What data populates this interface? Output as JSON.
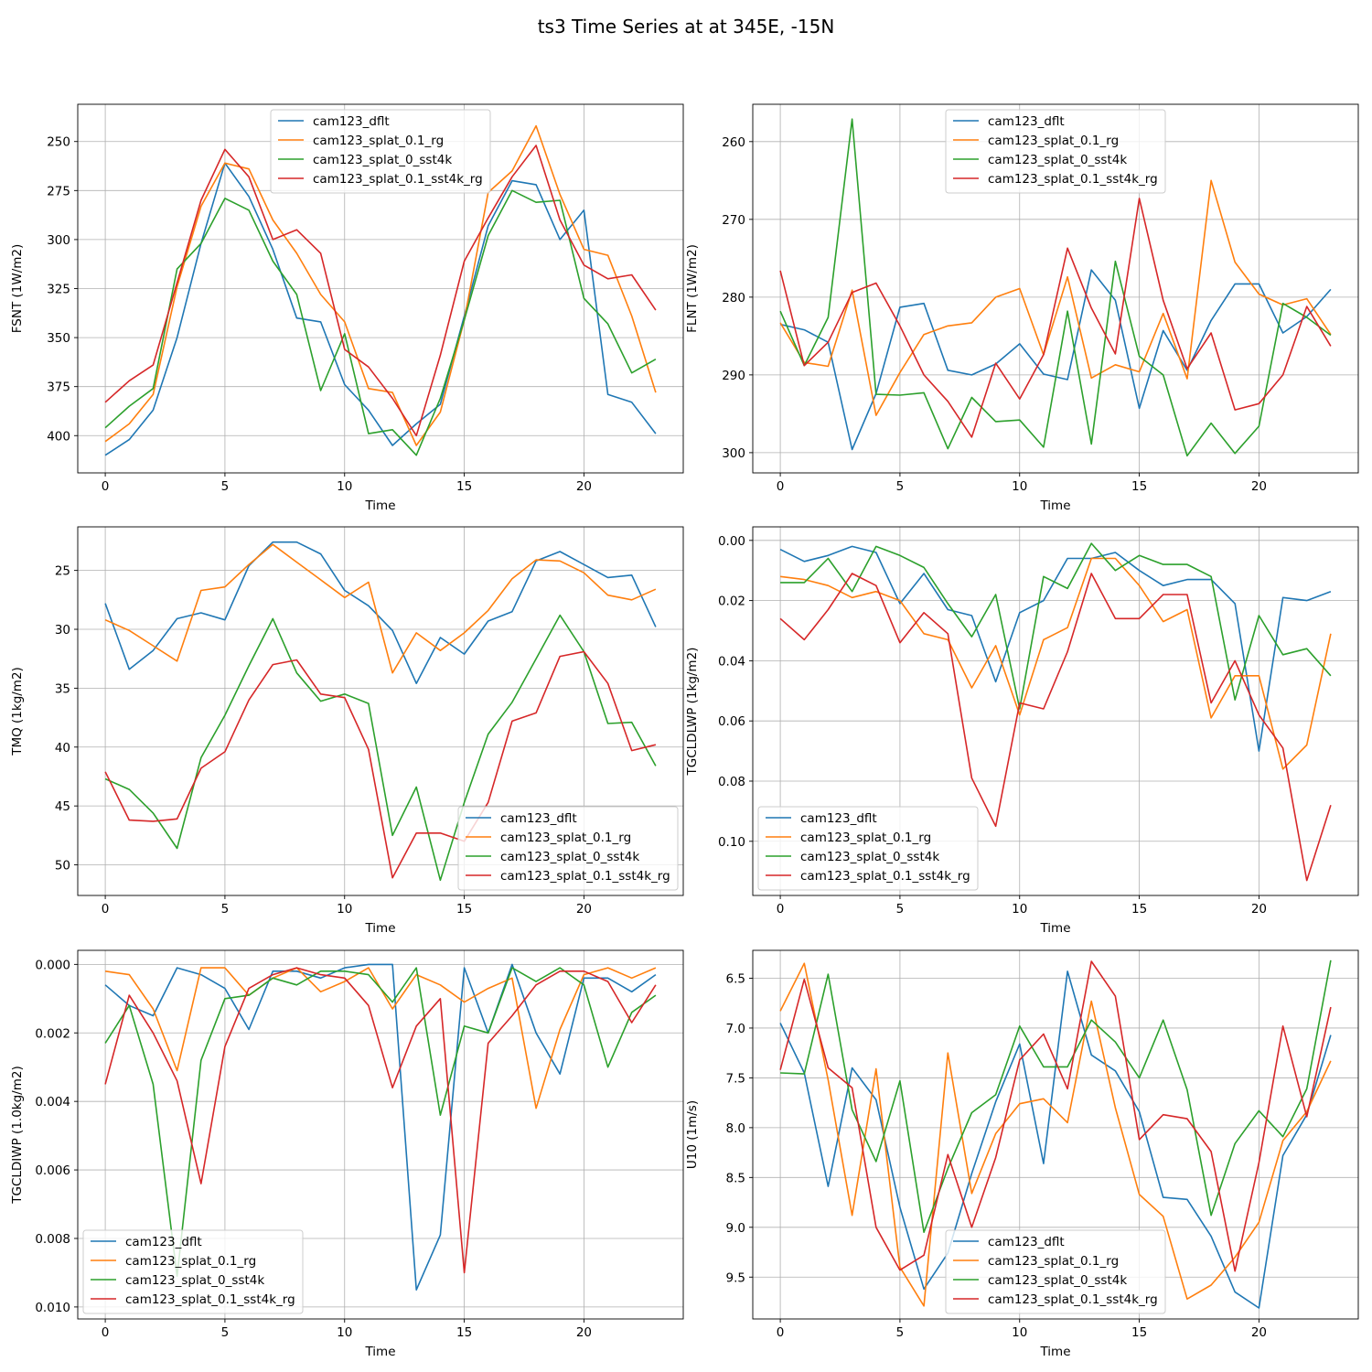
{
  "figure": {
    "title": "ts3 Time Series at at 345E, -15N",
    "series_names": [
      "cam123_dflt",
      "cam123_splat_0.1_rg",
      "cam123_splat_0_sst4k",
      "cam123_splat_0.1_sst4k_rg"
    ],
    "series_colors": [
      "#1f77b4",
      "#ff7f0e",
      "#2ca02c",
      "#d62728"
    ]
  },
  "chart_data": [
    {
      "type": "line",
      "xlabel": "Time",
      "ylabel": "FSNT (1W/m2)",
      "y_inverted": true,
      "xlim": [
        -1.15,
        24.15
      ],
      "ylim": [
        231,
        419
      ],
      "xticks": [
        0,
        5,
        10,
        15,
        20
      ],
      "yticks": [
        250,
        275,
        300,
        325,
        350,
        375,
        400
      ],
      "grid": true,
      "legend_location": "upper center",
      "x": [
        0,
        1,
        2,
        3,
        4,
        5,
        6,
        7,
        8,
        9,
        10,
        11,
        12,
        13,
        14,
        15,
        16,
        17,
        18,
        19,
        20,
        21,
        22,
        23
      ],
      "series": [
        {
          "name": "cam123_dflt",
          "values": [
            410,
            402,
            387,
            350,
            302,
            261,
            278,
            305,
            340,
            342,
            374,
            387,
            405,
            394,
            384,
            339,
            293,
            270,
            272,
            300,
            285,
            379,
            383,
            399
          ]
        },
        {
          "name": "cam123_splat_0.1_rg",
          "values": [
            403,
            394,
            379,
            324,
            283,
            261,
            264,
            290,
            307,
            328,
            342,
            376,
            378,
            405,
            388,
            341,
            276,
            265,
            242,
            277,
            305,
            308,
            339,
            378
          ]
        },
        {
          "name": "cam123_splat_0_sst4k",
          "values": [
            396,
            385,
            376,
            315,
            302,
            279,
            285,
            311,
            328,
            377,
            348,
            399,
            397,
            410,
            381,
            341,
            298,
            275,
            281,
            280,
            330,
            343,
            368,
            361
          ]
        },
        {
          "name": "cam123_splat_0.1_sst4k_rg",
          "values": [
            383,
            372,
            364,
            322,
            280,
            254,
            268,
            300,
            295,
            307,
            356,
            365,
            381,
            400,
            359,
            311,
            289,
            268,
            252,
            290,
            313,
            320,
            318,
            336
          ]
        }
      ]
    },
    {
      "type": "line",
      "xlabel": "Time",
      "ylabel": "FLNT (1W/m2)",
      "y_inverted": true,
      "xlim": [
        -1.15,
        24.15
      ],
      "ylim": [
        255.2,
        302.6
      ],
      "xticks": [
        0,
        5,
        10,
        15,
        20
      ],
      "yticks": [
        260,
        270,
        280,
        290,
        300
      ],
      "grid": true,
      "legend_location": "upper center",
      "x": [
        0,
        1,
        2,
        3,
        4,
        5,
        6,
        7,
        8,
        9,
        10,
        11,
        12,
        13,
        14,
        15,
        16,
        17,
        18,
        19,
        20,
        21,
        22,
        23
      ],
      "series": [
        {
          "name": "cam123_dflt",
          "values": [
            283.5,
            284.2,
            285.8,
            299.6,
            292.4,
            281.3,
            280.8,
            289.4,
            290.0,
            288.6,
            286.0,
            289.9,
            290.6,
            276.5,
            280.4,
            294.3,
            284.3,
            289.4,
            283.0,
            278.3,
            278.3,
            284.6,
            282.5,
            279.0
          ]
        },
        {
          "name": "cam123_splat_0.1_rg",
          "values": [
            283.3,
            288.4,
            288.9,
            279.1,
            295.2,
            289.7,
            284.8,
            283.7,
            283.3,
            280.0,
            278.9,
            287.4,
            277.4,
            290.4,
            288.7,
            289.6,
            282.1,
            290.5,
            265.0,
            275.5,
            279.6,
            281.0,
            280.2,
            284.8
          ]
        },
        {
          "name": "cam123_splat_0_sst4k",
          "values": [
            281.8,
            288.8,
            282.6,
            257.1,
            292.5,
            292.6,
            292.3,
            299.5,
            292.9,
            296.0,
            295.8,
            299.3,
            281.8,
            298.9,
            275.4,
            287.6,
            290.0,
            300.4,
            296.2,
            300.1,
            296.6,
            280.8,
            282.6,
            284.9
          ]
        },
        {
          "name": "cam123_splat_0.1_sst4k_rg",
          "values": [
            276.6,
            288.8,
            285.8,
            279.4,
            278.2,
            283.7,
            290.0,
            293.4,
            298.0,
            288.5,
            293.1,
            287.4,
            273.7,
            281.4,
            287.3,
            267.3,
            280.4,
            289.2,
            284.6,
            294.5,
            293.7,
            290.0,
            281.2,
            286.3
          ]
        }
      ]
    },
    {
      "type": "line",
      "xlabel": "Time",
      "ylabel": "TMQ (1kg/m2)",
      "y_inverted": true,
      "xlim": [
        -1.15,
        24.15
      ],
      "ylim": [
        21.3,
        52.6
      ],
      "xticks": [
        0,
        5,
        10,
        15,
        20
      ],
      "yticks": [
        25,
        30,
        35,
        40,
        45,
        50
      ],
      "grid": true,
      "legend_location": "lower right",
      "x": [
        0,
        1,
        2,
        3,
        4,
        5,
        6,
        7,
        8,
        9,
        10,
        11,
        12,
        13,
        14,
        15,
        16,
        17,
        18,
        19,
        20,
        21,
        22,
        23
      ],
      "series": [
        {
          "name": "cam123_dflt",
          "values": [
            27.8,
            33.4,
            31.8,
            29.1,
            28.6,
            29.2,
            24.6,
            22.6,
            22.6,
            23.6,
            26.7,
            28.0,
            30.1,
            34.6,
            30.7,
            32.1,
            29.3,
            28.5,
            24.2,
            23.4,
            24.5,
            25.6,
            25.4,
            29.8
          ]
        },
        {
          "name": "cam123_splat_0.1_rg",
          "values": [
            29.2,
            30.1,
            31.4,
            32.7,
            26.7,
            26.4,
            24.5,
            22.8,
            24.3,
            25.8,
            27.3,
            26.0,
            33.7,
            30.3,
            31.8,
            30.3,
            28.4,
            25.7,
            24.1,
            24.2,
            25.2,
            27.1,
            27.5,
            26.6
          ]
        },
        {
          "name": "cam123_splat_0_sst4k",
          "values": [
            42.7,
            43.6,
            45.6,
            48.6,
            40.9,
            37.3,
            33.1,
            29.1,
            33.7,
            36.1,
            35.5,
            36.3,
            47.5,
            43.4,
            51.3,
            44.7,
            38.9,
            36.2,
            32.5,
            28.8,
            31.9,
            38.0,
            37.9,
            41.6
          ]
        },
        {
          "name": "cam123_splat_0.1_sst4k_rg",
          "values": [
            42.1,
            46.2,
            46.3,
            46.1,
            41.8,
            40.4,
            36.0,
            33.0,
            32.6,
            35.5,
            35.8,
            40.2,
            51.1,
            47.3,
            47.3,
            48.0,
            44.7,
            37.8,
            37.1,
            32.3,
            31.9,
            34.6,
            40.3,
            39.8
          ]
        }
      ]
    },
    {
      "type": "line",
      "xlabel": "Time",
      "ylabel": "TGCLDLWP (1kg/m2)",
      "y_inverted": true,
      "xlim": [
        -1.15,
        24.15
      ],
      "ylim": [
        -0.0045,
        0.118
      ],
      "xticks": [
        0,
        5,
        10,
        15,
        20
      ],
      "yticks": [
        0.0,
        0.02,
        0.04,
        0.06,
        0.08,
        0.1
      ],
      "ytick_labels": [
        "0.00",
        "0.02",
        "0.04",
        "0.06",
        "0.08",
        "0.10"
      ],
      "grid": true,
      "legend_location": "lower left",
      "x": [
        0,
        1,
        2,
        3,
        4,
        5,
        6,
        7,
        8,
        9,
        10,
        11,
        12,
        13,
        14,
        15,
        16,
        17,
        18,
        19,
        20,
        21,
        22,
        23
      ],
      "series": [
        {
          "name": "cam123_dflt",
          "values": [
            0.003,
            0.007,
            0.005,
            0.002,
            0.004,
            0.021,
            0.011,
            0.023,
            0.025,
            0.047,
            0.024,
            0.02,
            0.006,
            0.006,
            0.004,
            0.01,
            0.015,
            0.013,
            0.013,
            0.021,
            0.07,
            0.019,
            0.02,
            0.017
          ]
        },
        {
          "name": "cam123_splat_0.1_rg",
          "values": [
            0.012,
            0.013,
            0.015,
            0.019,
            0.017,
            0.02,
            0.031,
            0.033,
            0.049,
            0.035,
            0.058,
            0.033,
            0.029,
            0.006,
            0.006,
            0.015,
            0.027,
            0.023,
            0.059,
            0.045,
            0.045,
            0.076,
            0.068,
            0.031
          ]
        },
        {
          "name": "cam123_splat_0_sst4k",
          "values": [
            0.014,
            0.014,
            0.006,
            0.017,
            0.002,
            0.005,
            0.009,
            0.021,
            0.032,
            0.018,
            0.056,
            0.012,
            0.016,
            0.001,
            0.01,
            0.005,
            0.008,
            0.008,
            0.012,
            0.053,
            0.025,
            0.038,
            0.036,
            0.045
          ]
        },
        {
          "name": "cam123_splat_0.1_sst4k_rg",
          "values": [
            0.026,
            0.033,
            0.023,
            0.011,
            0.015,
            0.034,
            0.024,
            0.031,
            0.079,
            0.095,
            0.054,
            0.056,
            0.037,
            0.011,
            0.026,
            0.026,
            0.018,
            0.018,
            0.054,
            0.04,
            0.058,
            0.069,
            0.113,
            0.088
          ]
        }
      ]
    },
    {
      "type": "line",
      "xlabel": "Time",
      "ylabel": "TGCLDIWP (1.0kg/m2)",
      "y_inverted": true,
      "xlim": [
        -1.15,
        24.15
      ],
      "ylim": [
        -0.00041,
        0.01035
      ],
      "xticks": [
        0,
        5,
        10,
        15,
        20
      ],
      "yticks": [
        0.0,
        0.002,
        0.004,
        0.006,
        0.008,
        0.01
      ],
      "ytick_labels": [
        "0.000",
        "0.002",
        "0.004",
        "0.006",
        "0.008",
        "0.010"
      ],
      "grid": true,
      "legend_location": "lower left",
      "x": [
        0,
        1,
        2,
        3,
        4,
        5,
        6,
        7,
        8,
        9,
        10,
        11,
        12,
        13,
        14,
        15,
        16,
        17,
        18,
        19,
        20,
        21,
        22,
        23
      ],
      "series": [
        {
          "name": "cam123_dflt",
          "values": [
            0.0006,
            0.0012,
            0.0015,
            0.0001,
            0.0003,
            0.0007,
            0.0019,
            0.0002,
            0.0002,
            0.0004,
            0.0001,
            0.0,
            0.0,
            0.0095,
            0.0079,
            0.0001,
            0.002,
            0.0,
            0.002,
            0.0032,
            0.0004,
            0.0004,
            0.0008,
            0.0003
          ]
        },
        {
          "name": "cam123_splat_0.1_rg",
          "values": [
            0.0002,
            0.0003,
            0.0013,
            0.0031,
            0.0001,
            0.0001,
            0.0009,
            0.0004,
            0.0001,
            0.0008,
            0.0005,
            0.0001,
            0.0013,
            0.0003,
            0.0006,
            0.0011,
            0.0007,
            0.0004,
            0.0042,
            0.0019,
            0.0003,
            0.0001,
            0.0004,
            0.0001
          ]
        },
        {
          "name": "cam123_splat_0_sst4k",
          "values": [
            0.0023,
            0.0012,
            0.0035,
            0.0091,
            0.0028,
            0.001,
            0.0009,
            0.0004,
            0.0006,
            0.0002,
            0.0002,
            0.0003,
            0.0011,
            0.0001,
            0.0044,
            0.0018,
            0.002,
            0.0001,
            0.0005,
            0.0001,
            0.0006,
            0.003,
            0.0014,
            0.0009
          ]
        },
        {
          "name": "cam123_splat_0.1_sst4k_rg",
          "values": [
            0.0035,
            0.0009,
            0.002,
            0.0034,
            0.0064,
            0.0024,
            0.0007,
            0.0003,
            0.0001,
            0.0003,
            0.0004,
            0.0012,
            0.0036,
            0.0018,
            0.001,
            0.009,
            0.0023,
            0.0015,
            0.0006,
            0.0002,
            0.0002,
            0.0005,
            0.0017,
            0.0006
          ]
        }
      ]
    },
    {
      "type": "line",
      "xlabel": "Time",
      "ylabel": "U10 (1m/s)",
      "y_inverted": true,
      "xlim": [
        -1.15,
        24.15
      ],
      "ylim": [
        6.22,
        9.92
      ],
      "xticks": [
        0,
        5,
        10,
        15,
        20
      ],
      "yticks": [
        6.5,
        7.0,
        7.5,
        8.0,
        8.5,
        9.0,
        9.5
      ],
      "ytick_labels": [
        "6.5",
        "7.0",
        "7.5",
        "8.0",
        "8.5",
        "9.0",
        "9.5"
      ],
      "grid": true,
      "legend_location": "lower center",
      "x": [
        0,
        1,
        2,
        3,
        4,
        5,
        6,
        7,
        8,
        9,
        10,
        11,
        12,
        13,
        14,
        15,
        16,
        17,
        18,
        19,
        20,
        21,
        22,
        23
      ],
      "series": [
        {
          "name": "cam123_dflt",
          "values": [
            6.95,
            7.45,
            8.59,
            7.4,
            7.72,
            8.8,
            9.62,
            9.26,
            8.46,
            7.74,
            7.16,
            8.36,
            6.43,
            7.27,
            7.43,
            7.84,
            8.7,
            8.72,
            9.09,
            9.65,
            9.81,
            8.28,
            7.87,
            7.07
          ]
        },
        {
          "name": "cam123_splat_0.1_rg",
          "values": [
            6.83,
            6.35,
            7.52,
            8.88,
            7.41,
            9.4,
            9.79,
            7.25,
            8.66,
            8.06,
            7.76,
            7.71,
            7.95,
            6.73,
            7.8,
            8.67,
            8.89,
            9.72,
            9.58,
            9.3,
            8.95,
            8.13,
            7.84,
            7.33
          ]
        },
        {
          "name": "cam123_splat_0_sst4k",
          "values": [
            7.45,
            7.46,
            6.46,
            7.82,
            8.34,
            7.53,
            9.05,
            8.41,
            7.85,
            7.67,
            6.98,
            7.39,
            7.39,
            6.92,
            7.14,
            7.5,
            6.92,
            7.62,
            8.88,
            8.16,
            7.83,
            8.09,
            7.61,
            6.32
          ]
        },
        {
          "name": "cam123_splat_0.1_sst4k_rg",
          "values": [
            7.42,
            6.51,
            7.4,
            7.6,
            9.0,
            9.43,
            9.28,
            8.27,
            9.0,
            8.3,
            7.32,
            7.06,
            7.61,
            6.33,
            6.68,
            8.12,
            7.87,
            7.91,
            8.24,
            9.44,
            8.35,
            6.98,
            7.89,
            6.79
          ]
        }
      ]
    }
  ]
}
